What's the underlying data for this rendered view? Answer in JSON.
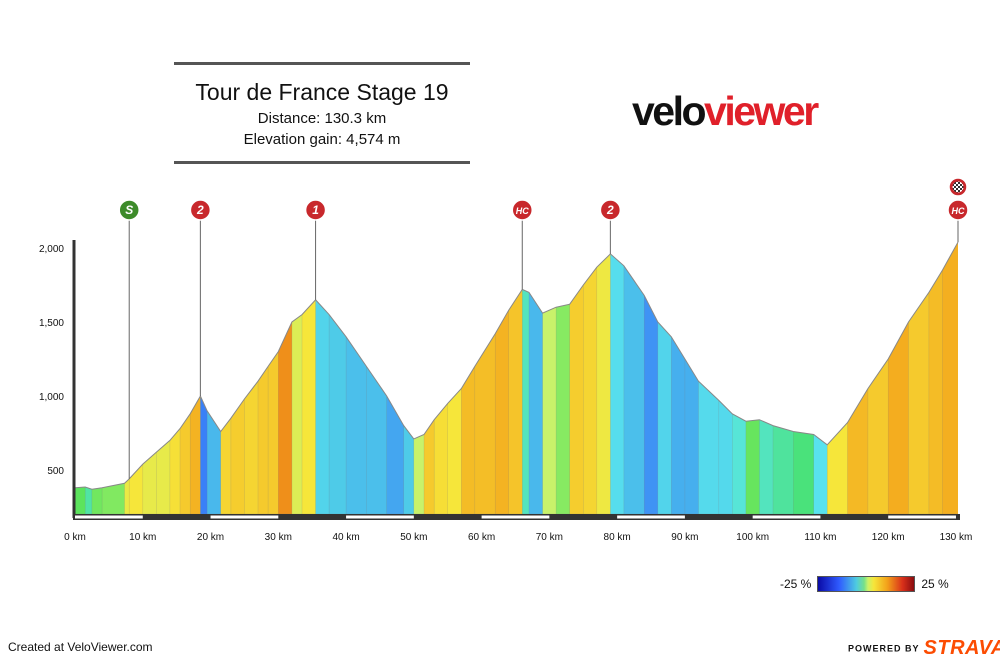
{
  "header": {
    "title": "Tour de France Stage 19",
    "distance": "Distance: 130.3 km",
    "elevation_gain": "Elevation gain: 4,574 m"
  },
  "brand": {
    "part1": "velo",
    "part2": "viewer"
  },
  "footer": {
    "credit": "Created at VeloViewer.com",
    "powered_by": "POWERED BY",
    "strava": "STRAVA"
  },
  "legend": {
    "min_label": "-25 %",
    "max_label": "25 %"
  },
  "colors": {
    "accent": "#e0202a",
    "strava": "#fc4c02",
    "start_marker": "#3d8b2a",
    "climb_marker": "#c8282c"
  },
  "chart_data": {
    "type": "area",
    "title": "",
    "xlabel": "",
    "ylabel": "",
    "xlim": [
      0,
      130.3
    ],
    "ylim": [
      160,
      2000
    ],
    "x_ticks": [
      0,
      10,
      20,
      30,
      40,
      50,
      60,
      70,
      80,
      90,
      100,
      110,
      120,
      130
    ],
    "x_tick_labels": [
      "0 km",
      "10 km",
      "20 km",
      "30 km",
      "40 km",
      "50 km",
      "60 km",
      "70 km",
      "80 km",
      "90 km",
      "100 km",
      "110 km",
      "120 km",
      "130 km"
    ],
    "y_ticks": [
      500,
      1000,
      1500,
      2000
    ],
    "y_tick_labels": [
      "500",
      "1,000",
      "1,500",
      "2,000"
    ],
    "grid": false,
    "color_scale": "gradient %",
    "profile": [
      {
        "x": 0,
        "y": 380
      },
      {
        "x": 1.5,
        "y": 385
      },
      {
        "x": 2.5,
        "y": 370
      },
      {
        "x": 4,
        "y": 380
      },
      {
        "x": 7.3,
        "y": 410
      },
      {
        "x": 8,
        "y": 440
      },
      {
        "x": 10,
        "y": 540
      },
      {
        "x": 12,
        "y": 620
      },
      {
        "x": 14,
        "y": 700
      },
      {
        "x": 15.5,
        "y": 780
      },
      {
        "x": 17,
        "y": 880
      },
      {
        "x": 18.5,
        "y": 1000
      },
      {
        "x": 19.5,
        "y": 900
      },
      {
        "x": 21.5,
        "y": 760
      },
      {
        "x": 23,
        "y": 850
      },
      {
        "x": 25,
        "y": 980
      },
      {
        "x": 27,
        "y": 1100
      },
      {
        "x": 28.5,
        "y": 1200
      },
      {
        "x": 30,
        "y": 1300
      },
      {
        "x": 32,
        "y": 1500
      },
      {
        "x": 33.5,
        "y": 1550
      },
      {
        "x": 35.5,
        "y": 1650
      },
      {
        "x": 37.5,
        "y": 1550
      },
      {
        "x": 40,
        "y": 1400
      },
      {
        "x": 43,
        "y": 1200
      },
      {
        "x": 46,
        "y": 1000
      },
      {
        "x": 48.5,
        "y": 800
      },
      {
        "x": 50,
        "y": 710
      },
      {
        "x": 51.5,
        "y": 740
      },
      {
        "x": 53,
        "y": 840
      },
      {
        "x": 55,
        "y": 950
      },
      {
        "x": 57,
        "y": 1050
      },
      {
        "x": 59,
        "y": 1200
      },
      {
        "x": 62,
        "y": 1420
      },
      {
        "x": 64,
        "y": 1580
      },
      {
        "x": 66,
        "y": 1720
      },
      {
        "x": 67,
        "y": 1700
      },
      {
        "x": 69,
        "y": 1560
      },
      {
        "x": 71,
        "y": 1600
      },
      {
        "x": 73,
        "y": 1620
      },
      {
        "x": 75,
        "y": 1750
      },
      {
        "x": 77,
        "y": 1870
      },
      {
        "x": 79,
        "y": 1960
      },
      {
        "x": 81,
        "y": 1880
      },
      {
        "x": 84,
        "y": 1680
      },
      {
        "x": 86,
        "y": 1500
      },
      {
        "x": 88,
        "y": 1400
      },
      {
        "x": 90,
        "y": 1250
      },
      {
        "x": 92,
        "y": 1100
      },
      {
        "x": 95,
        "y": 970
      },
      {
        "x": 97,
        "y": 880
      },
      {
        "x": 99,
        "y": 830
      },
      {
        "x": 101,
        "y": 840
      },
      {
        "x": 103,
        "y": 800
      },
      {
        "x": 106,
        "y": 760
      },
      {
        "x": 109,
        "y": 740
      },
      {
        "x": 111,
        "y": 670
      },
      {
        "x": 114,
        "y": 820
      },
      {
        "x": 117,
        "y": 1050
      },
      {
        "x": 120,
        "y": 1250
      },
      {
        "x": 123,
        "y": 1500
      },
      {
        "x": 126,
        "y": 1700
      },
      {
        "x": 128,
        "y": 1850
      },
      {
        "x": 130.3,
        "y": 2040
      }
    ],
    "markers": [
      {
        "x": 8,
        "label": "S",
        "category": "start"
      },
      {
        "x": 18.5,
        "label": "2",
        "category": "climb"
      },
      {
        "x": 35.5,
        "label": "1",
        "category": "climb"
      },
      {
        "x": 66,
        "label": "HC",
        "category": "climb"
      },
      {
        "x": 79,
        "label": "2",
        "category": "climb"
      },
      {
        "x": 130.3,
        "label": "HC",
        "category": "climb"
      },
      {
        "x": 130.3,
        "label": "",
        "category": "finish"
      }
    ]
  }
}
